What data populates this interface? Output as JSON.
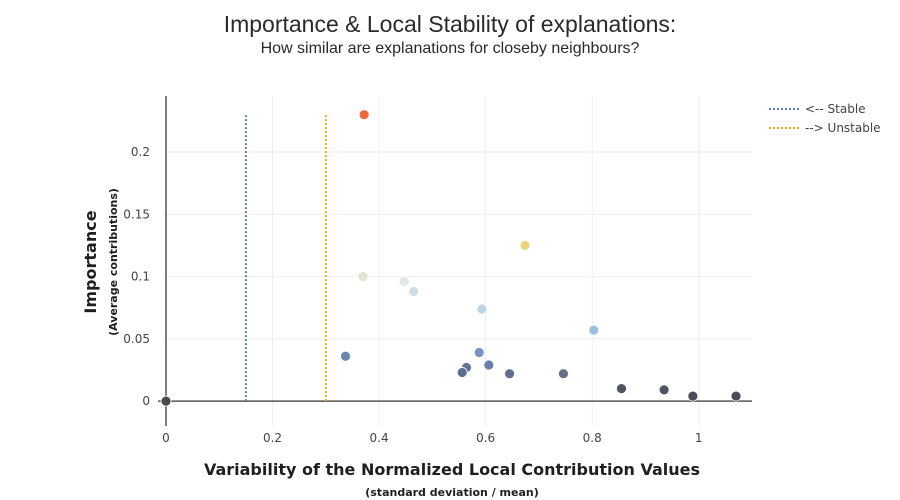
{
  "chart_data": {
    "type": "scatter",
    "title": "Importance & Local Stability of explanations:",
    "subtitle": "How similar are explanations for closeby neighbours?",
    "xlabel": "Variability of the Normalized Local Contribution Values",
    "xlabel_sub": "(standard deviation / mean)",
    "ylabel": "Importance",
    "ylabel_sub": "(Average contributions)",
    "xlim": [
      0,
      1.1
    ],
    "ylim": [
      -0.02,
      0.245
    ],
    "x_ticks": [
      0,
      0.2,
      0.4,
      0.6,
      0.8,
      1
    ],
    "x_tick_labels": [
      "0",
      "0.2",
      "0.4",
      "0.6",
      "0.8",
      "1"
    ],
    "y_ticks": [
      0,
      0.05,
      0.1,
      0.15,
      0.2
    ],
    "y_tick_labels": [
      "0",
      "0.05",
      "0.1",
      "0.15",
      "0.2"
    ],
    "grid": true,
    "legend_position": "top-right",
    "thresholds": [
      {
        "name": "<-- Stable",
        "x": 0.15,
        "color": "#5b7fb4",
        "y_top": 0.23
      },
      {
        "name": "--> Unstable",
        "x": 0.3,
        "color": "#f5a623",
        "y_top": 0.23
      }
    ],
    "points": [
      {
        "x": 0.0,
        "y": 0.0,
        "color": "#4a4a4a"
      },
      {
        "x": 0.372,
        "y": 0.23,
        "color": "#f4693a"
      },
      {
        "x": 0.674,
        "y": 0.125,
        "color": "#ecd47a"
      },
      {
        "x": 0.37,
        "y": 0.1,
        "color": "#e6e3cf"
      },
      {
        "x": 0.447,
        "y": 0.096,
        "color": "#dde8ec"
      },
      {
        "x": 0.465,
        "y": 0.088,
        "color": "#cddde8"
      },
      {
        "x": 0.593,
        "y": 0.074,
        "color": "#bdd2e6"
      },
      {
        "x": 0.803,
        "y": 0.057,
        "color": "#9fbde0"
      },
      {
        "x": 0.337,
        "y": 0.036,
        "color": "#6c86b2"
      },
      {
        "x": 0.588,
        "y": 0.039,
        "color": "#7a93c2"
      },
      {
        "x": 0.606,
        "y": 0.029,
        "color": "#6a7fa8"
      },
      {
        "x": 0.564,
        "y": 0.027,
        "color": "#5f7399"
      },
      {
        "x": 0.556,
        "y": 0.023,
        "color": "#5e7093"
      },
      {
        "x": 0.645,
        "y": 0.022,
        "color": "#5f6f8c"
      },
      {
        "x": 0.746,
        "y": 0.022,
        "color": "#62708a"
      },
      {
        "x": 0.855,
        "y": 0.01,
        "color": "#4f5460"
      },
      {
        "x": 0.935,
        "y": 0.009,
        "color": "#4f5460"
      },
      {
        "x": 0.989,
        "y": 0.004,
        "color": "#4a4d55"
      },
      {
        "x": 1.07,
        "y": 0.004,
        "color": "#4a4d55"
      }
    ]
  }
}
